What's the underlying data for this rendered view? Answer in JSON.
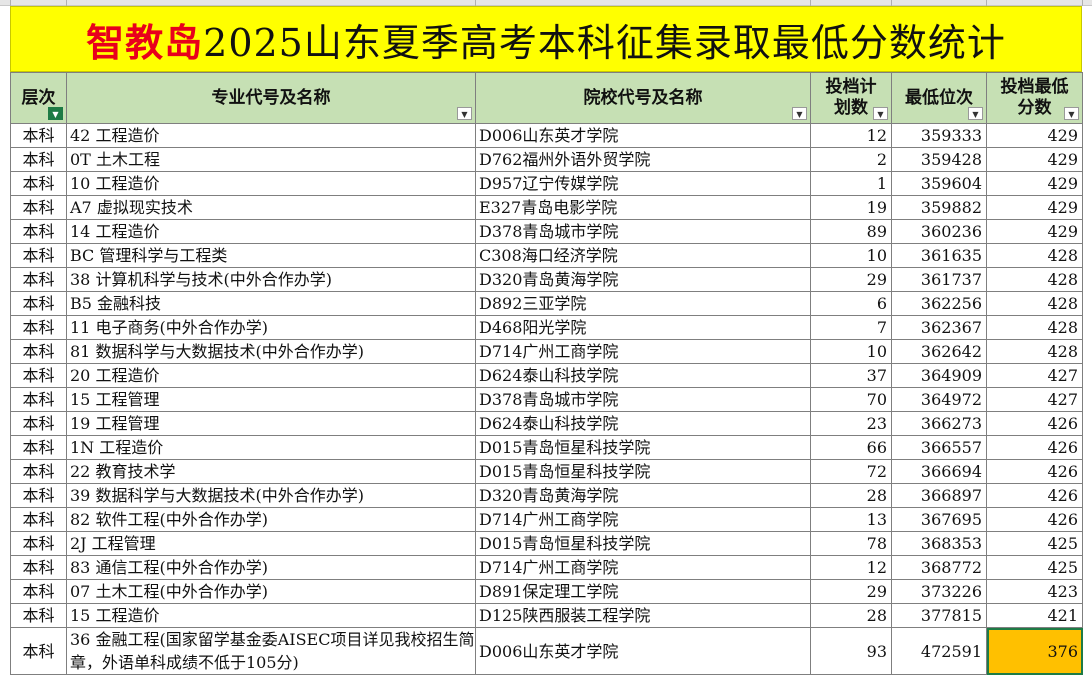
{
  "title": {
    "brand": "智教岛",
    "text": "2025山东夏季高考本科征集录取最低分数统计"
  },
  "headers": {
    "level": "层次",
    "major": "专业代号及名称",
    "school": "院校代号及名称",
    "plan": [
      "投档计",
      "划数"
    ],
    "min_rank": "最低位次",
    "min_score": [
      "投档最低",
      "分数"
    ]
  },
  "colors": {
    "banner": "#ffff00",
    "brand": "#e8001c",
    "header": "#c6e0b4",
    "highlight": "#ffc000"
  },
  "rows": [
    {
      "level": "本科",
      "major": "42 工程造价",
      "school": "D006山东英才学院",
      "plan": "12",
      "rank": "359333",
      "score": "429"
    },
    {
      "level": "本科",
      "major": "0T 土木工程",
      "school": "D762福州外语外贸学院",
      "plan": "2",
      "rank": "359428",
      "score": "429"
    },
    {
      "level": "本科",
      "major": "10 工程造价",
      "school": "D957辽宁传媒学院",
      "plan": "1",
      "rank": "359604",
      "score": "429"
    },
    {
      "level": "本科",
      "major": "A7 虚拟现实技术",
      "school": "E327青岛电影学院",
      "plan": "19",
      "rank": "359882",
      "score": "429"
    },
    {
      "level": "本科",
      "major": "14 工程造价",
      "school": "D378青岛城市学院",
      "plan": "89",
      "rank": "360236",
      "score": "429"
    },
    {
      "level": "本科",
      "major": "BC 管理科学与工程类",
      "school": "C308海口经济学院",
      "plan": "10",
      "rank": "361635",
      "score": "428"
    },
    {
      "level": "本科",
      "major": "38 计算机科学与技术(中外合作办学)",
      "school": "D320青岛黄海学院",
      "plan": "29",
      "rank": "361737",
      "score": "428"
    },
    {
      "level": "本科",
      "major": "B5 金融科技",
      "school": "D892三亚学院",
      "plan": "6",
      "rank": "362256",
      "score": "428"
    },
    {
      "level": "本科",
      "major": "11 电子商务(中外合作办学)",
      "school": "D468阳光学院",
      "plan": "7",
      "rank": "362367",
      "score": "428"
    },
    {
      "level": "本科",
      "major": "81 数据科学与大数据技术(中外合作办学)",
      "school": "D714广州工商学院",
      "plan": "10",
      "rank": "362642",
      "score": "428"
    },
    {
      "level": "本科",
      "major": "20 工程造价",
      "school": "D624泰山科技学院",
      "plan": "37",
      "rank": "364909",
      "score": "427"
    },
    {
      "level": "本科",
      "major": "15 工程管理",
      "school": "D378青岛城市学院",
      "plan": "70",
      "rank": "364972",
      "score": "427"
    },
    {
      "level": "本科",
      "major": "19 工程管理",
      "school": "D624泰山科技学院",
      "plan": "23",
      "rank": "366273",
      "score": "426"
    },
    {
      "level": "本科",
      "major": "1N 工程造价",
      "school": "D015青岛恒星科技学院",
      "plan": "66",
      "rank": "366557",
      "score": "426"
    },
    {
      "level": "本科",
      "major": "22 教育技术学",
      "school": "D015青岛恒星科技学院",
      "plan": "72",
      "rank": "366694",
      "score": "426"
    },
    {
      "level": "本科",
      "major": "39 数据科学与大数据技术(中外合作办学)",
      "school": "D320青岛黄海学院",
      "plan": "28",
      "rank": "366897",
      "score": "426"
    },
    {
      "level": "本科",
      "major": "82 软件工程(中外合作办学)",
      "school": "D714广州工商学院",
      "plan": "13",
      "rank": "367695",
      "score": "426"
    },
    {
      "level": "本科",
      "major": "2J 工程管理",
      "school": "D015青岛恒星科技学院",
      "plan": "78",
      "rank": "368353",
      "score": "425"
    },
    {
      "level": "本科",
      "major": "83 通信工程(中外合作办学)",
      "school": "D714广州工商学院",
      "plan": "12",
      "rank": "368772",
      "score": "425"
    },
    {
      "level": "本科",
      "major": "07 土木工程(中外合作办学)",
      "school": "D891保定理工学院",
      "plan": "29",
      "rank": "373226",
      "score": "423"
    },
    {
      "level": "本科",
      "major": "15 工程造价",
      "school": "D125陕西服装工程学院",
      "plan": "28",
      "rank": "377815",
      "score": "421"
    },
    {
      "level": "本科",
      "major": "36 金融工程(国家留学基金委AISEC项目详见我校招生简章，外语单科成绩不低于105分)",
      "school": "D006山东英才学院",
      "plan": "93",
      "rank": "472591",
      "score": "376",
      "tall": true,
      "highlight": true
    }
  ]
}
